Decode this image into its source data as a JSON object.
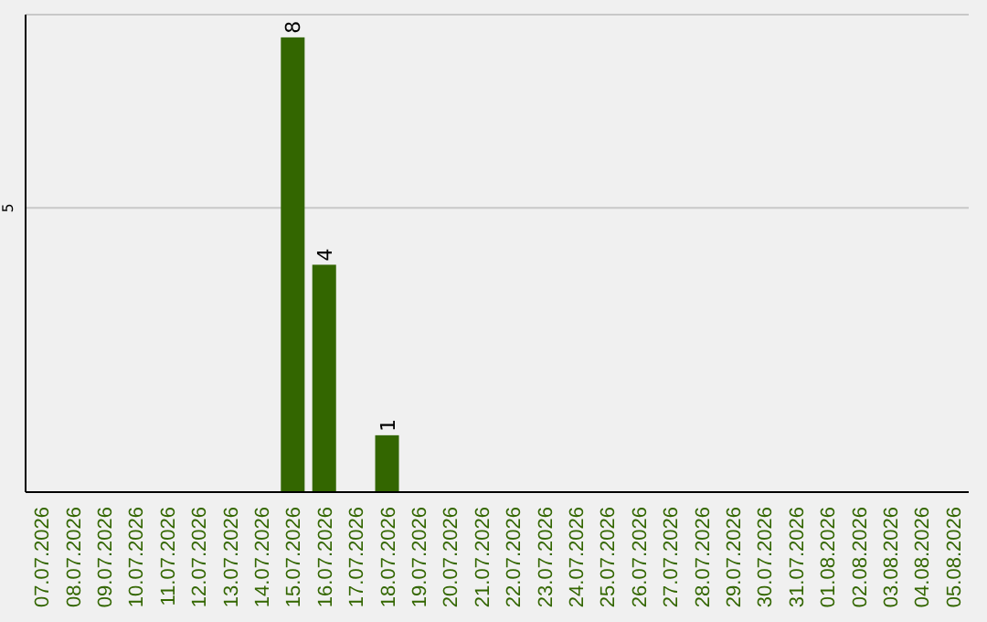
{
  "chart_data": {
    "type": "bar",
    "categories": [
      "07.07.2026",
      "08.07.2026",
      "09.07.2026",
      "10.07.2026",
      "11.07.2026",
      "12.07.2026",
      "13.07.2026",
      "14.07.2026",
      "15.07.2026",
      "16.07.2026",
      "17.07.2026",
      "18.07.2026",
      "19.07.2026",
      "20.07.2026",
      "21.07.2026",
      "22.07.2026",
      "23.07.2026",
      "24.07.2026",
      "25.07.2026",
      "26.07.2026",
      "27.07.2026",
      "28.07.2026",
      "29.07.2026",
      "30.07.2026",
      "31.07.2026",
      "01.08.2026",
      "02.08.2026",
      "03.08.2026",
      "04.08.2026",
      "05.08.2026"
    ],
    "values": [
      0,
      0,
      0,
      0,
      0,
      0,
      0,
      0,
      8,
      4,
      0,
      1,
      0,
      0,
      0,
      0,
      0,
      0,
      0,
      0,
      0,
      0,
      0,
      0,
      0,
      0,
      0,
      0,
      0,
      0
    ],
    "value_labels": [
      null,
      null,
      null,
      null,
      null,
      null,
      null,
      null,
      "8",
      "4",
      null,
      "1",
      null,
      null,
      null,
      null,
      null,
      null,
      null,
      null,
      null,
      null,
      null,
      null,
      null,
      null,
      null,
      null,
      null,
      null
    ],
    "color": "#336600",
    "ylim": [
      0,
      8.4
    ],
    "yticks": [
      5
    ],
    "grid": "y"
  }
}
